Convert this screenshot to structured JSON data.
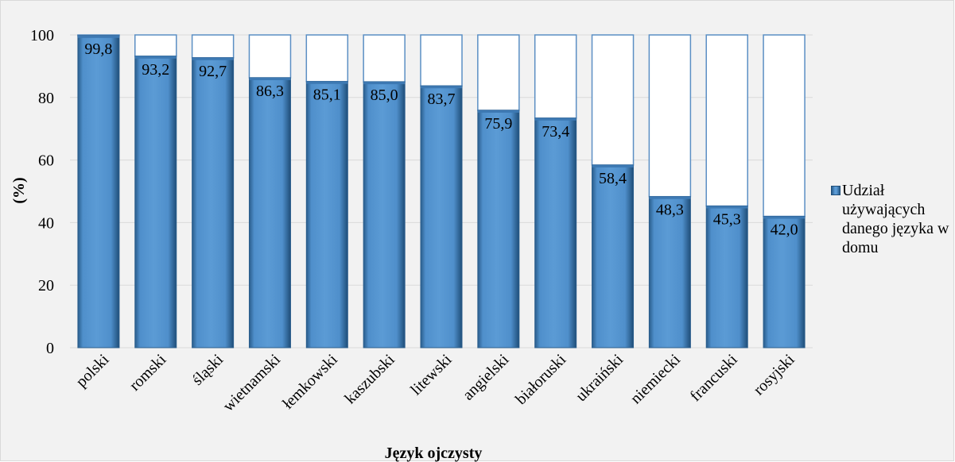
{
  "chart_data": {
    "type": "bar",
    "stacked_to_100": true,
    "categories": [
      "polski",
      "romski",
      "śląski",
      "wietnamski",
      "łemkowski",
      "kaszubski",
      "litewski",
      "angielski",
      "białoruski",
      "ukraiński",
      "niemiecki",
      "francuski",
      "rosyjski"
    ],
    "series": [
      {
        "name": "Udział używających danego języka w domu",
        "values": [
          99.8,
          93.2,
          92.7,
          86.3,
          85.1,
          85.0,
          83.7,
          75.9,
          73.4,
          58.4,
          48.3,
          45.3,
          42.0
        ],
        "value_labels": [
          "99,8",
          "93,2",
          "92,7",
          "86,3",
          "85,1",
          "85,0",
          "83,7",
          "75,9",
          "73,4",
          "58,4",
          "48,3",
          "45,3",
          "42,0"
        ]
      }
    ],
    "title": "",
    "xlabel": "Język ojczysty",
    "ylabel": "(%)",
    "ylim": [
      0,
      100
    ],
    "yticks": [
      0,
      20,
      40,
      60,
      80,
      100
    ],
    "grid": true,
    "legend_position": "right",
    "colors": {
      "bar_fill": "#5b9bd5",
      "bar_dark": "#2a5d8c",
      "remainder_fill": "#ffffff",
      "bar_outline": "#5b8fc4",
      "background": "#f2f2f2",
      "gridline": "#d9d9d9"
    }
  }
}
